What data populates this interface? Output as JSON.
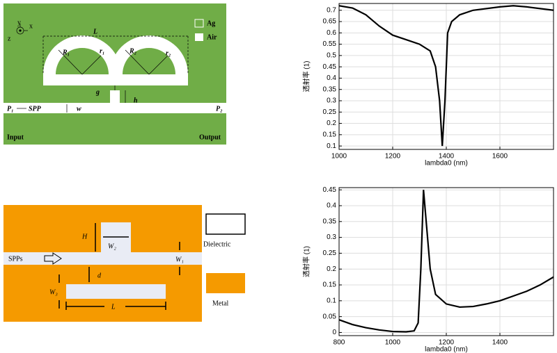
{
  "diagrams": [
    {
      "labels": {
        "y": "y",
        "x": "x",
        "z": "z",
        "L": "L",
        "R1": "R₁",
        "r1": "r₁",
        "R2": "R₂",
        "r2": "r₂",
        "ag": "Ag",
        "air": "Air",
        "g": "g",
        "h": "h",
        "P1": "P₁",
        "spp": "SPP",
        "w": "w",
        "P2": "P₂",
        "input": "Input",
        "output": "Output"
      }
    },
    {
      "labels": {
        "H": "H",
        "W2": "W₂",
        "spps": "SPPs",
        "W1": "W₁",
        "d": "d",
        "W3": "W₃",
        "L": "L",
        "dielectric": "Dielectric",
        "metal": "Metal"
      }
    }
  ],
  "chart_data": [
    {
      "type": "line",
      "xlabel": "lambda0 (nm)",
      "ylabel": "透射率 (1)",
      "x": [
        1000,
        1050,
        1100,
        1150,
        1200,
        1250,
        1300,
        1340,
        1360,
        1375,
        1385,
        1395,
        1405,
        1420,
        1450,
        1500,
        1600,
        1650,
        1700,
        1800
      ],
      "values": [
        0.72,
        0.71,
        0.68,
        0.63,
        0.59,
        0.57,
        0.55,
        0.52,
        0.45,
        0.3,
        0.1,
        0.3,
        0.6,
        0.65,
        0.68,
        0.7,
        0.715,
        0.72,
        0.715,
        0.7
      ],
      "color": "#000000",
      "xlim": [
        1000,
        1800
      ],
      "ylim": [
        0.085,
        0.73
      ],
      "xticks": [
        1000,
        1200,
        1400,
        1600
      ],
      "yticks": [
        0.1,
        0.15,
        0.2,
        0.25,
        0.3,
        0.35,
        0.4,
        0.45,
        0.5,
        0.55,
        0.6,
        0.65,
        0.7
      ],
      "grid": true
    },
    {
      "type": "line",
      "xlabel": "lambda0 (nm)",
      "ylabel": "透射率 (1)",
      "x": [
        800,
        850,
        900,
        950,
        1000,
        1050,
        1080,
        1095,
        1105,
        1115,
        1125,
        1140,
        1160,
        1200,
        1250,
        1300,
        1350,
        1400,
        1450,
        1500,
        1550,
        1600
      ],
      "values": [
        0.04,
        0.025,
        0.015,
        0.008,
        0.003,
        0.002,
        0.005,
        0.03,
        0.2,
        0.45,
        0.35,
        0.2,
        0.12,
        0.09,
        0.08,
        0.082,
        0.09,
        0.1,
        0.115,
        0.13,
        0.15,
        0.175
      ],
      "color": "#000000",
      "xlim": [
        800,
        1600
      ],
      "ylim": [
        -0.01,
        0.457
      ],
      "xticks": [
        800,
        1000,
        1200,
        1400
      ],
      "yticks": [
        0,
        0.05,
        0.1,
        0.15,
        0.2,
        0.25,
        0.3,
        0.35,
        0.4,
        0.45
      ],
      "grid": true
    }
  ]
}
